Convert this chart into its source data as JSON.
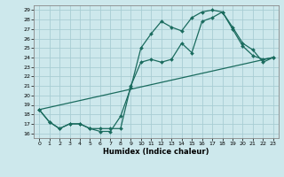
{
  "xlabel": "Humidex (Indice chaleur)",
  "bg_color": "#cde8ec",
  "grid_color": "#a8cdd4",
  "line_color": "#1a6b5e",
  "xlim": [
    -0.5,
    23.5
  ],
  "ylim": [
    15.5,
    29.5
  ],
  "xticks": [
    0,
    1,
    2,
    3,
    4,
    5,
    6,
    7,
    8,
    9,
    10,
    11,
    12,
    13,
    14,
    15,
    16,
    17,
    18,
    19,
    20,
    21,
    22,
    23
  ],
  "yticks": [
    16,
    17,
    18,
    19,
    20,
    21,
    22,
    23,
    24,
    25,
    26,
    27,
    28,
    29
  ],
  "line1_x": [
    0,
    1,
    2,
    3,
    4,
    5,
    6,
    7,
    8,
    9,
    10,
    11,
    12,
    13,
    14,
    15,
    16,
    17,
    18,
    19,
    20,
    21,
    22,
    23
  ],
  "line1_y": [
    18.5,
    17.2,
    16.5,
    17.0,
    17.0,
    16.5,
    16.2,
    16.2,
    17.8,
    20.8,
    25.0,
    26.5,
    27.8,
    27.2,
    26.8,
    28.2,
    28.8,
    29.0,
    28.8,
    27.0,
    25.2,
    24.2,
    23.8,
    24.0
  ],
  "line2_x": [
    0,
    1,
    2,
    3,
    4,
    5,
    6,
    7,
    8,
    9,
    10,
    11,
    12,
    13,
    14,
    15,
    16,
    17,
    18,
    19,
    20,
    21,
    22,
    23
  ],
  "line2_y": [
    18.5,
    17.2,
    16.5,
    17.0,
    17.0,
    16.5,
    16.5,
    16.5,
    16.5,
    21.0,
    23.5,
    23.8,
    23.5,
    23.8,
    25.5,
    24.5,
    27.8,
    28.2,
    28.8,
    27.2,
    25.5,
    24.8,
    23.5,
    24.0
  ],
  "line3_x": [
    0,
    23
  ],
  "line3_y": [
    18.5,
    24.0
  ]
}
